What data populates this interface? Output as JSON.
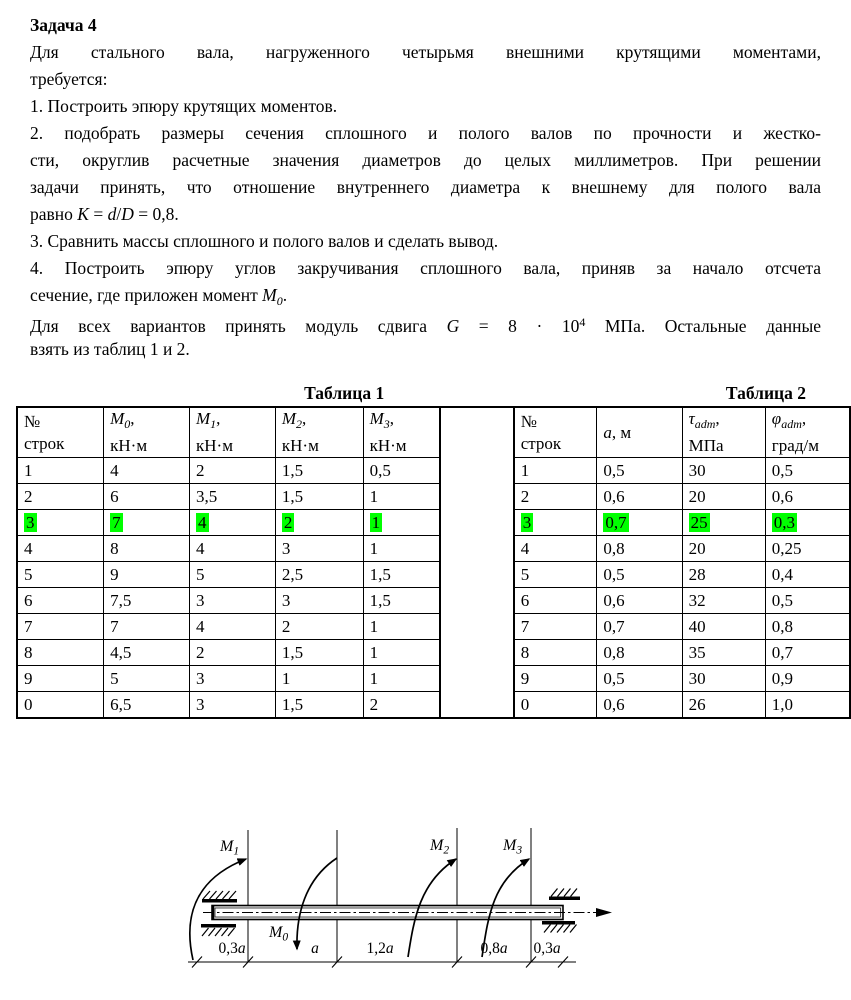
{
  "colors": {
    "highlight": "#00ff00",
    "ink": "#000000"
  },
  "intro": {
    "title": "Задача 4",
    "lines": [
      {
        "j": true,
        "parts": [
          {
            "t": "Для стального вала, нагруженного четырьмя внешними крутящими моментами,"
          }
        ]
      },
      {
        "j": false,
        "parts": [
          {
            "t": "требуется:"
          }
        ]
      },
      {
        "j": false,
        "parts": [
          {
            "t": "1. Построить эпюру крутящих моментов."
          }
        ]
      },
      {
        "j": true,
        "parts": [
          {
            "t": "2. подобрать размеры сечения сплошного и полого валов по прочности и жестко-"
          }
        ]
      },
      {
        "j": true,
        "parts": [
          {
            "t": "сти, округлив расчетные значения диаметров до целых миллиметров. При решении"
          }
        ]
      },
      {
        "j": true,
        "parts": [
          {
            "t": "задачи принять, что отношение внутреннего диаметра к внешнему для полого вала"
          }
        ]
      },
      {
        "j": false,
        "parts": [
          {
            "t": "равно "
          },
          {
            "t": "K",
            "s": "i"
          },
          {
            "t": " = "
          },
          {
            "t": "d",
            "s": "i"
          },
          {
            "t": "/"
          },
          {
            "t": "D",
            "s": "i"
          },
          {
            "t": " = 0,8."
          }
        ]
      },
      {
        "j": false,
        "parts": [
          {
            "t": "3. Сравнить массы сплошного и полого валов и сделать вывод."
          }
        ]
      },
      {
        "j": true,
        "parts": [
          {
            "t": "4. Построить эпюру углов закручивания сплошного вала, приняв за начало отсчета"
          }
        ]
      },
      {
        "j": false,
        "parts": [
          {
            "t": "сечение, где приложен момент "
          },
          {
            "t": "M",
            "s": "i"
          },
          {
            "t": "0",
            "s": "is"
          },
          {
            "t": "."
          }
        ]
      },
      {
        "j": true,
        "parts": [
          {
            "t": "Для всех вариантов  принять модуль сдвига "
          },
          {
            "t": "G",
            "s": "i"
          },
          {
            "t": " = 8 · 10"
          },
          {
            "t": "4",
            "s": "sup"
          },
          {
            "t": " МПа. Остальные данные"
          }
        ]
      },
      {
        "j": false,
        "parts": [
          {
            "t": "взять из таблиц 1 и 2."
          }
        ]
      }
    ]
  },
  "table1": {
    "caption": "Таблица 1",
    "headers": [
      {
        "lines": [
          [
            {
              "t": "№"
            }
          ],
          [
            {
              "t": "строк"
            }
          ]
        ]
      },
      {
        "lines": [
          [
            {
              "t": "M",
              "s": "i"
            },
            {
              "t": "0",
              "s": "is"
            },
            {
              "t": ","
            }
          ],
          [
            {
              "t": "кН·м"
            }
          ]
        ]
      },
      {
        "lines": [
          [
            {
              "t": "M",
              "s": "i"
            },
            {
              "t": "1",
              "s": "is"
            },
            {
              "t": ","
            }
          ],
          [
            {
              "t": "кН·м"
            }
          ]
        ]
      },
      {
        "lines": [
          [
            {
              "t": "M",
              "s": "i"
            },
            {
              "t": "2",
              "s": "is"
            },
            {
              "t": ","
            }
          ],
          [
            {
              "t": "кН·м"
            }
          ]
        ]
      },
      {
        "lines": [
          [
            {
              "t": "M",
              "s": "i"
            },
            {
              "t": "3",
              "s": "is"
            },
            {
              "t": ","
            }
          ],
          [
            {
              "t": "кН·м"
            }
          ]
        ]
      }
    ],
    "rows": [
      [
        "1",
        "4",
        "2",
        "1,5",
        "0,5"
      ],
      [
        "2",
        "6",
        "3,5",
        "1,5",
        "1"
      ],
      [
        "3",
        "7",
        "4",
        "2",
        "1"
      ],
      [
        "4",
        "8",
        "4",
        "3",
        "1"
      ],
      [
        "5",
        "9",
        "5",
        "2,5",
        "1,5"
      ],
      [
        "6",
        "7,5",
        "3",
        "3",
        "1,5"
      ],
      [
        "7",
        "7",
        "4",
        "2",
        "1"
      ],
      [
        "8",
        "4,5",
        "2",
        "1,5",
        "1"
      ],
      [
        "9",
        "5",
        "3",
        "1",
        "1"
      ],
      [
        "0",
        "6,5",
        "3",
        "1,5",
        "2"
      ]
    ],
    "highlight_row": 2
  },
  "table2": {
    "caption": "Таблица 2",
    "headers": [
      {
        "lines": [
          [
            {
              "t": "№"
            }
          ],
          [
            {
              "t": "строк"
            }
          ]
        ]
      },
      {
        "lines": [
          [
            {
              "t": "a",
              "s": "i"
            },
            {
              "t": ", м"
            }
          ]
        ]
      },
      {
        "lines": [
          [
            {
              "t": "τ",
              "s": "i"
            },
            {
              "t": "adm",
              "s": "is"
            },
            {
              "t": ","
            }
          ],
          [
            {
              "t": "МПа"
            }
          ]
        ]
      },
      {
        "lines": [
          [
            {
              "t": "φ",
              "s": "i"
            },
            {
              "t": "adm",
              "s": "is"
            },
            {
              "t": ","
            }
          ],
          [
            {
              "t": "град/м"
            }
          ]
        ]
      }
    ],
    "rows": [
      [
        "1",
        "0,5",
        "30",
        "0,5"
      ],
      [
        "2",
        "0,6",
        "20",
        "0,6"
      ],
      [
        "3",
        "0,7",
        "25",
        "0,3"
      ],
      [
        "4",
        "0,8",
        "20",
        "0,25"
      ],
      [
        "5",
        "0,5",
        "28",
        "0,4"
      ],
      [
        "6",
        "0,6",
        "32",
        "0,5"
      ],
      [
        "7",
        "0,7",
        "40",
        "0,8"
      ],
      [
        "8",
        "0,8",
        "35",
        "0,7"
      ],
      [
        "9",
        "0,5",
        "30",
        "0,9"
      ],
      [
        "0",
        "0,6",
        "26",
        "1,0"
      ]
    ],
    "highlight_row": 2
  },
  "diagram": {
    "moments": {
      "m1": {
        "base": "M",
        "sub": "1"
      },
      "m0": {
        "base": "M",
        "sub": "0"
      },
      "m2": {
        "base": "M",
        "sub": "2"
      },
      "m3": {
        "base": "M",
        "sub": "3"
      }
    },
    "dims": [
      {
        "num": "0,3",
        "var": "a"
      },
      {
        "num": "",
        "var": "a"
      },
      {
        "num": "1,2",
        "var": "a"
      },
      {
        "num": "0,8",
        "var": "a"
      },
      {
        "num": "0,3",
        "var": "a"
      }
    ]
  }
}
